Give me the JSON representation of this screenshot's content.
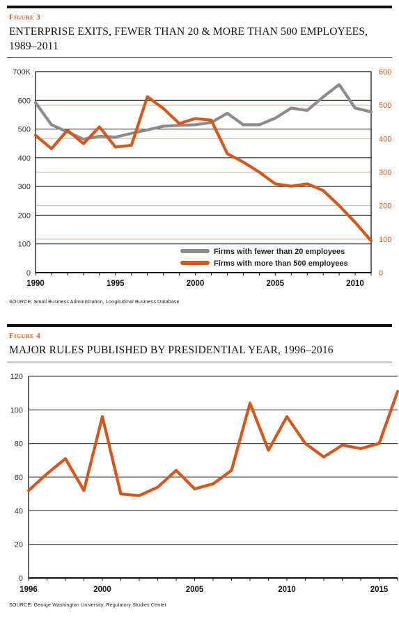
{
  "figures": [
    {
      "label": "Figure 3",
      "title": "ENTERPRISE EXITS, FEWER THAN 20 & MORE THAN 500 EMPLOYEES, 1989–2011",
      "source": "SOURCE: Small Business Administration, Longitudinal Business Database"
    },
    {
      "label": "Figure 4",
      "title": "MAJOR RULES PUBLISHED BY PRESIDENTIAL YEAR, 1996–2016",
      "source": "SOURCE: George Washington University, Regulatory Studies Center"
    }
  ],
  "chart_data": [
    {
      "type": "line",
      "title": "ENTERPRISE EXITS, FEWER THAN 20 & MORE THAN 500 EMPLOYEES, 1989–2011",
      "x": [
        1990,
        1991,
        1992,
        1993,
        1994,
        1995,
        1996,
        1997,
        1998,
        1999,
        2000,
        2001,
        2002,
        2003,
        2004,
        2005,
        2006,
        2007,
        2008,
        2009,
        2010,
        2011
      ],
      "xticks": [
        "1990",
        "1995",
        "2000",
        "2005",
        "2010"
      ],
      "xlim": [
        1990,
        2011
      ],
      "yticks_left": [
        "700K",
        "600",
        "500",
        "400",
        "300",
        "200",
        "100",
        "0"
      ],
      "yticks_right": [
        "600",
        "500",
        "400",
        "300",
        "200",
        "100",
        "0"
      ],
      "ylim_left": [
        0,
        700
      ],
      "ylim_right": [
        0,
        600
      ],
      "legend_position": "bottom-right",
      "grid": true,
      "series": [
        {
          "name": "Firms with fewer than 20 employees",
          "axis": "left",
          "color": "#8c8c8c",
          "values": [
            592,
            515,
            490,
            465,
            475,
            472,
            485,
            497,
            510,
            513,
            515,
            523,
            555,
            515,
            515,
            538,
            573,
            565,
            612,
            655,
            573,
            560
          ]
        },
        {
          "name": "Firms with more than 500 employees",
          "axis": "right",
          "color": "#d4571b",
          "values": [
            410,
            370,
            425,
            385,
            435,
            375,
            380,
            525,
            490,
            445,
            460,
            455,
            355,
            330,
            300,
            265,
            258,
            265,
            245,
            200,
            150,
            95
          ]
        }
      ]
    },
    {
      "type": "line",
      "title": "MAJOR RULES PUBLISHED BY PRESIDENTIAL YEAR, 1996–2016",
      "x": [
        1996,
        1997,
        1998,
        1999,
        2000,
        2001,
        2002,
        2003,
        2004,
        2005,
        2006,
        2007,
        2008,
        2009,
        2010,
        2011,
        2012,
        2013,
        2014,
        2015,
        2016
      ],
      "xticks": [
        "1996",
        "2000",
        "2005",
        "2010",
        "2015"
      ],
      "xlim": [
        1996,
        2016
      ],
      "yticks": [
        "120",
        "100",
        "80",
        "60",
        "40",
        "20",
        "0"
      ],
      "ylim": [
        0,
        120
      ],
      "grid": true,
      "series": [
        {
          "color": "#d4571b",
          "values": [
            52,
            62,
            71,
            52,
            96,
            50,
            49,
            54,
            64,
            53,
            56,
            64,
            104,
            76,
            96,
            80,
            72,
            79,
            77,
            80,
            111
          ]
        }
      ]
    }
  ]
}
